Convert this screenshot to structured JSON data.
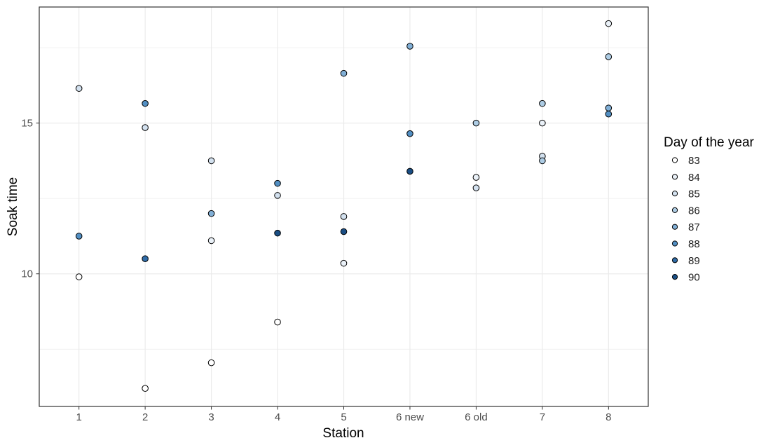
{
  "chart_data": {
    "type": "scatter",
    "title": "",
    "xlabel": "Station",
    "ylabel": "Soak time",
    "x_categories": [
      "1",
      "2",
      "3",
      "4",
      "5",
      "6 new",
      "6 old",
      "7",
      "8"
    ],
    "y_ticks": [
      10,
      15
    ],
    "y_minor": [
      7.5,
      12.5,
      17.5
    ],
    "ylim": [
      5.6,
      18.85
    ],
    "grid": "major and minor horizontal, major vertical per category",
    "legend": {
      "title": "Day of the year",
      "position": "right",
      "entries": [
        {
          "label": "83",
          "color": "#FFFFFF"
        },
        {
          "label": "84",
          "color": "#EAF1F8"
        },
        {
          "label": "85",
          "color": "#D3E1EF"
        },
        {
          "label": "86",
          "color": "#ADCCE4"
        },
        {
          "label": "87",
          "color": "#81AFD6"
        },
        {
          "label": "88",
          "color": "#528FC3"
        },
        {
          "label": "89",
          "color": "#2F6BA7"
        },
        {
          "label": "90",
          "color": "#1A4E84"
        }
      ]
    },
    "points": [
      {
        "station": "1",
        "soak": 16.15,
        "day": 85
      },
      {
        "station": "1",
        "soak": 11.25,
        "day": 88
      },
      {
        "station": "1",
        "soak": 9.9,
        "day": 83
      },
      {
        "station": "2",
        "soak": 15.65,
        "day": 88
      },
      {
        "station": "2",
        "soak": 14.85,
        "day": 85
      },
      {
        "station": "2",
        "soak": 10.5,
        "day": 89
      },
      {
        "station": "2",
        "soak": 6.2,
        "day": 83
      },
      {
        "station": "3",
        "soak": 13.75,
        "day": 85
      },
      {
        "station": "3",
        "soak": 12.0,
        "day": 87
      },
      {
        "station": "3",
        "soak": 11.1,
        "day": 84
      },
      {
        "station": "3",
        "soak": 7.05,
        "day": 83
      },
      {
        "station": "4",
        "soak": 13.0,
        "day": 88
      },
      {
        "station": "4",
        "soak": 12.6,
        "day": 85
      },
      {
        "station": "4",
        "soak": 11.35,
        "day": 90
      },
      {
        "station": "4",
        "soak": 8.4,
        "day": 83
      },
      {
        "station": "5",
        "soak": 16.65,
        "day": 87
      },
      {
        "station": "5",
        "soak": 11.9,
        "day": 85
      },
      {
        "station": "5",
        "soak": 11.4,
        "day": 90
      },
      {
        "station": "5",
        "soak": 10.35,
        "day": 84
      },
      {
        "station": "6 new",
        "soak": 17.55,
        "day": 87
      },
      {
        "station": "6 new",
        "soak": 14.65,
        "day": 88
      },
      {
        "station": "6 new",
        "soak": 13.4,
        "day": 90
      },
      {
        "station": "6 old",
        "soak": 15.0,
        "day": 86
      },
      {
        "station": "6 old",
        "soak": 13.2,
        "day": 84
      },
      {
        "station": "6 old",
        "soak": 12.85,
        "day": 85
      },
      {
        "station": "7",
        "soak": 15.65,
        "day": 86
      },
      {
        "station": "7",
        "soak": 15.0,
        "day": 84
      },
      {
        "station": "7",
        "soak": 13.9,
        "day": 85
      },
      {
        "station": "7",
        "soak": 13.75,
        "day": 86
      },
      {
        "station": "8",
        "soak": 18.3,
        "day": 84
      },
      {
        "station": "8",
        "soak": 17.2,
        "day": 86
      },
      {
        "station": "8",
        "soak": 15.5,
        "day": 87
      },
      {
        "station": "8",
        "soak": 15.3,
        "day": 88
      }
    ]
  },
  "style": {
    "background": "#FFFFFF",
    "panel_fill": "#FFFFFF",
    "panel_border": "#333333",
    "grid_color": "#EBEBEB",
    "tick_color": "#333333",
    "tick_label_color": "#4D4D4D",
    "point_stroke": "#000000"
  }
}
